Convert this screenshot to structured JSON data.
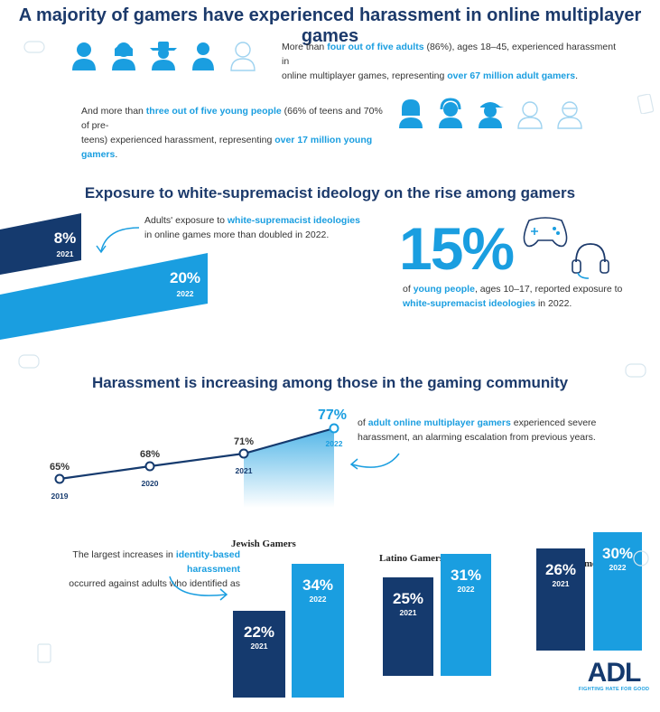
{
  "title": "A majority of gamers have experienced harassment in online multiplayer games",
  "section1": {
    "adults_text_1": "More than ",
    "adults_hl_1": "four out of five adults",
    "adults_text_2": " (86%), ages 18–45, experienced harassment in",
    "adults_text_3": "online multiplayer games, representing ",
    "adults_hl_2": "over 67 million adult gamers",
    "adults_text_4": ".",
    "young_text_1": "And more than ",
    "young_hl_1": "three out of five young people",
    "young_text_2": " (66% of teens and 70% of pre-",
    "young_text_3": "teens) experienced harassment, representing ",
    "young_hl_2": "over 17 million young gamers",
    "young_text_4": "."
  },
  "section2": {
    "title": "Exposure to white-supremacist ideology on the rise among gamers",
    "adults_text_1": "Adults' exposure to ",
    "adults_hl": "white-supremacist ideologies",
    "adults_text_2": "in online games more than doubled in 2022.",
    "big_pct": "15%",
    "young_hl_1": "young people",
    "young_text_1": "of ",
    "young_text_2": ", ages 10–17, reported exposure to",
    "young_hl_2": "white-supremacist ideologies",
    "young_text_3": " in 2022."
  },
  "section3": {
    "title": "Harassment is increasing among those in the gaming community",
    "callout_text_1": "of ",
    "callout_hl": "adult online multiplayer gamers",
    "callout_text_2": " experienced severe",
    "callout_text_3": "harassment, an alarming escalation from previous years."
  },
  "section4": {
    "intro_text_1": "The largest increases in ",
    "intro_hl": "identity-based harassment",
    "intro_text_2": "occurred against adults who identified as"
  },
  "logo": {
    "name": "ADL",
    "tagline": "FIGHTING HATE FOR GOOD"
  },
  "colors": {
    "navy": "#1c3a6b",
    "blue": "#1a9ee0",
    "dark_bar": "#153a6e"
  },
  "chart_data": [
    {
      "type": "bar",
      "categories": [
        "2021",
        "2022"
      ],
      "values": [
        8,
        20
      ],
      "value_labels": [
        "8%",
        "20%"
      ]
    },
    {
      "type": "line",
      "x": [
        "2019",
        "2020",
        "2021",
        "2022"
      ],
      "values": [
        65,
        68,
        71,
        77
      ],
      "value_labels": [
        "65%",
        "68%",
        "71%",
        "77%"
      ]
    },
    {
      "type": "bar",
      "title": "Jewish Gamers",
      "categories": [
        "2021",
        "2022"
      ],
      "values": [
        22,
        34
      ],
      "value_labels": [
        "22%",
        "34%"
      ]
    },
    {
      "type": "bar",
      "title": "Latino Gamers",
      "categories": [
        "2021",
        "2022"
      ],
      "values": [
        25,
        31
      ],
      "value_labels": [
        "25%",
        "31%"
      ]
    },
    {
      "type": "bar",
      "title": "Muslim Gamers",
      "categories": [
        "2021",
        "2022"
      ],
      "values": [
        26,
        30
      ],
      "value_labels": [
        "26%",
        "30%"
      ]
    }
  ]
}
